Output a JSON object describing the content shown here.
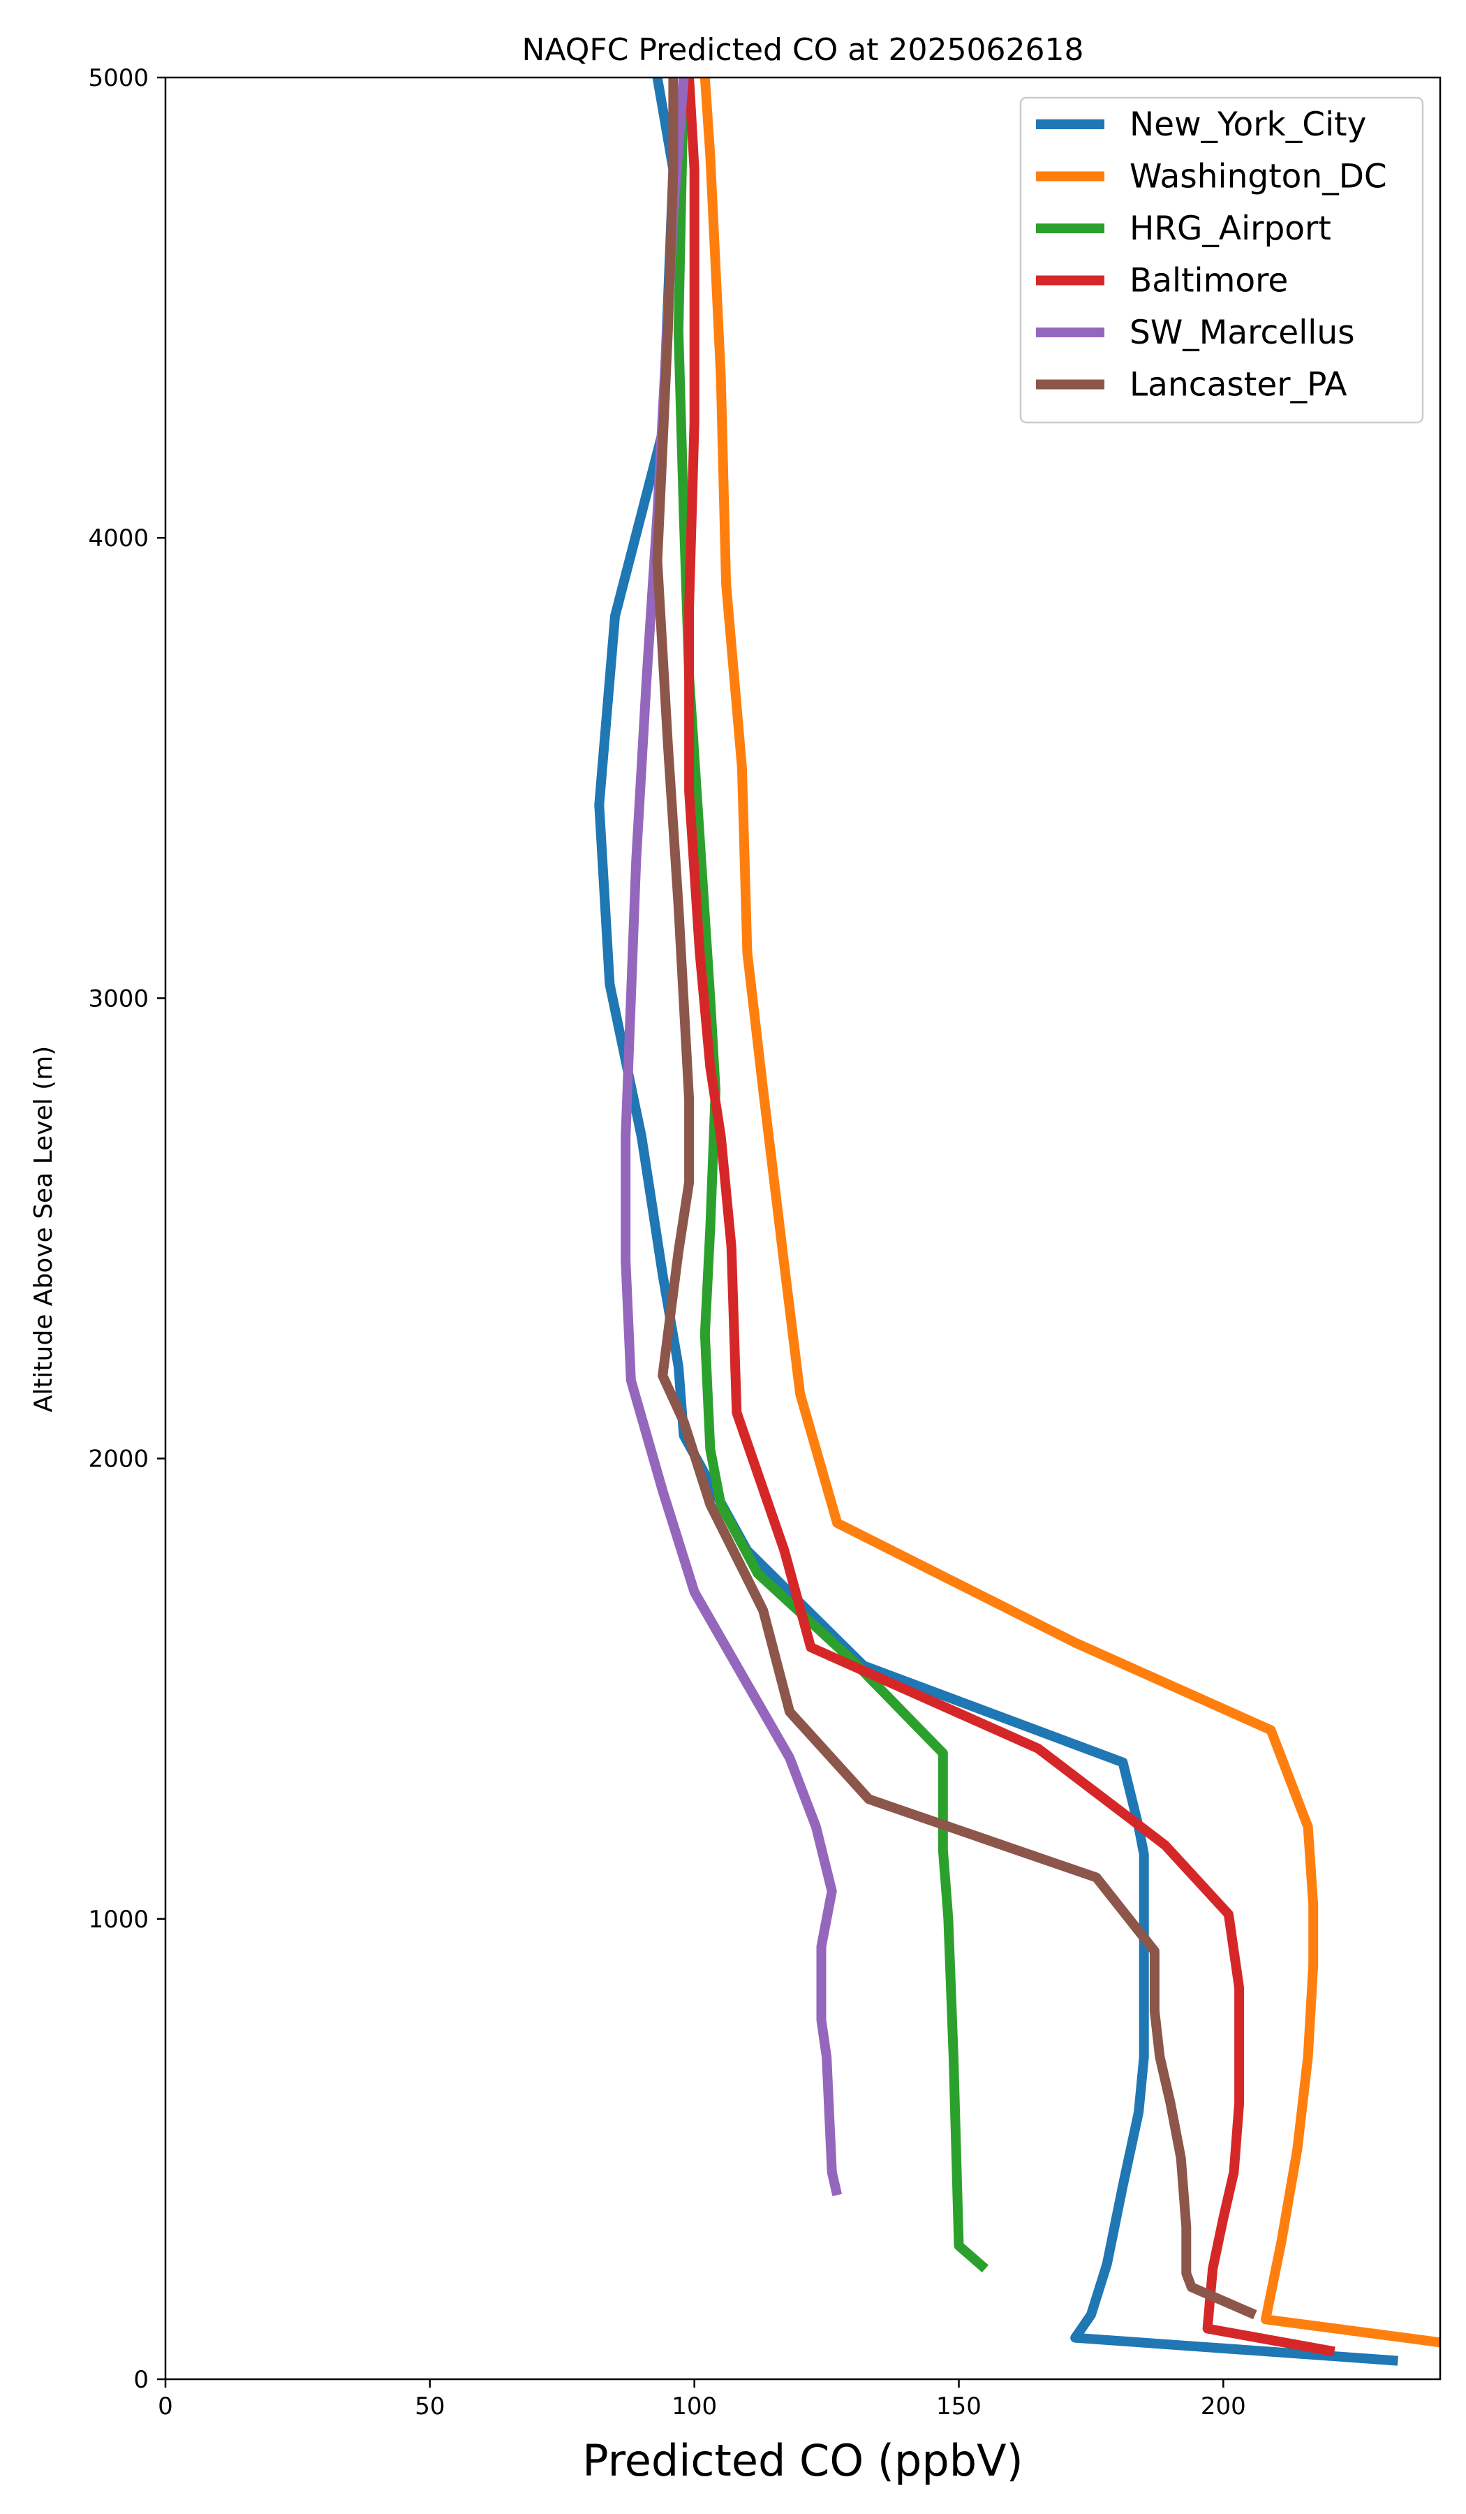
{
  "chart_data": {
    "type": "line",
    "title": "NAQFC Predicted CO at 2025062618",
    "xlabel": "Predicted CO (ppbV)",
    "ylabel": "Altitude Above Sea Level (m)",
    "xlim": [
      0,
      241
    ],
    "ylim": [
      0,
      5000
    ],
    "xticks": [
      0,
      50,
      100,
      150,
      200
    ],
    "yticks": [
      0,
      1000,
      2000,
      3000,
      4000,
      5000
    ],
    "grid": false,
    "legend_position": "top-right",
    "series": [
      {
        "name": "New_York_City",
        "color": "#1f77b4",
        "points": [
          [
            233,
            40
          ],
          [
            172,
            90
          ],
          [
            175,
            140
          ],
          [
            178,
            250
          ],
          [
            181,
            420
          ],
          [
            184,
            580
          ],
          [
            185,
            700
          ],
          [
            185,
            860
          ],
          [
            185,
            1000
          ],
          [
            185,
            1140
          ],
          [
            184,
            1200
          ],
          [
            181,
            1340
          ],
          [
            132,
            1550
          ],
          [
            110,
            1800
          ],
          [
            98,
            2050
          ],
          [
            97,
            2200
          ],
          [
            94,
            2400
          ],
          [
            92,
            2550
          ],
          [
            90,
            2700
          ],
          [
            84,
            3030
          ],
          [
            82,
            3420
          ],
          [
            85,
            3830
          ],
          [
            94,
            4230
          ],
          [
            96,
            4800
          ],
          [
            93,
            5000
          ]
        ]
      },
      {
        "name": "Washington_DC",
        "color": "#ff7f0e",
        "points": [
          [
            241,
            80
          ],
          [
            208,
            130
          ],
          [
            211,
            300
          ],
          [
            214,
            500
          ],
          [
            216,
            700
          ],
          [
            217,
            900
          ],
          [
            217,
            1030
          ],
          [
            216,
            1200
          ],
          [
            209,
            1410
          ],
          [
            172,
            1600
          ],
          [
            127,
            1860
          ],
          [
            120,
            2140
          ],
          [
            117,
            2420
          ],
          [
            113,
            2800
          ],
          [
            110,
            3100
          ],
          [
            109,
            3500
          ],
          [
            106,
            3900
          ],
          [
            105,
            4350
          ],
          [
            103,
            4830
          ],
          [
            102,
            5000
          ]
        ]
      },
      {
        "name": "HRG_Airport",
        "color": "#2ca02c",
        "points": [
          [
            155,
            240
          ],
          [
            150,
            290
          ],
          [
            149,
            700
          ],
          [
            148,
            1000
          ],
          [
            147,
            1150
          ],
          [
            147,
            1360
          ],
          [
            130,
            1560
          ],
          [
            112,
            1750
          ],
          [
            105,
            1900
          ],
          [
            103,
            2020
          ],
          [
            102,
            2270
          ],
          [
            103,
            2500
          ],
          [
            104,
            2800
          ],
          [
            103,
            3000
          ],
          [
            101,
            3350
          ],
          [
            99,
            3700
          ],
          [
            98,
            4050
          ],
          [
            97,
            4450
          ],
          [
            98,
            5000
          ]
        ]
      },
      {
        "name": "Baltimore",
        "color": "#d62728",
        "points": [
          [
            221,
            60
          ],
          [
            197,
            110
          ],
          [
            198,
            240
          ],
          [
            200,
            350
          ],
          [
            202,
            450
          ],
          [
            203,
            600
          ],
          [
            203,
            700
          ],
          [
            203,
            850
          ],
          [
            201,
            1010
          ],
          [
            189,
            1160
          ],
          [
            165,
            1370
          ],
          [
            122,
            1590
          ],
          [
            117,
            1800
          ],
          [
            108,
            2100
          ],
          [
            107,
            2460
          ],
          [
            105,
            2700
          ],
          [
            103,
            2850
          ],
          [
            101,
            3100
          ],
          [
            99,
            3450
          ],
          [
            99,
            3850
          ],
          [
            100,
            4250
          ],
          [
            100,
            4800
          ],
          [
            99,
            5000
          ]
        ]
      },
      {
        "name": "SW_Marcellus",
        "color": "#9467bd",
        "points": [
          [
            127,
            400
          ],
          [
            126,
            450
          ],
          [
            125,
            700
          ],
          [
            124,
            780
          ],
          [
            124,
            940
          ],
          [
            126,
            1060
          ],
          [
            123,
            1200
          ],
          [
            118,
            1350
          ],
          [
            100,
            1710
          ],
          [
            94,
            1930
          ],
          [
            88,
            2170
          ],
          [
            87,
            2430
          ],
          [
            87,
            2700
          ],
          [
            88,
            3000
          ],
          [
            89,
            3300
          ],
          [
            91,
            3700
          ],
          [
            93,
            4050
          ],
          [
            96,
            4700
          ],
          [
            98,
            5000
          ]
        ]
      },
      {
        "name": "Lancaster_PA",
        "color": "#8c564b",
        "points": [
          [
            206,
            140
          ],
          [
            194,
            200
          ],
          [
            193,
            230
          ],
          [
            193,
            330
          ],
          [
            192,
            480
          ],
          [
            190,
            600
          ],
          [
            188,
            700
          ],
          [
            187,
            800
          ],
          [
            187,
            930
          ],
          [
            176,
            1090
          ],
          [
            133,
            1260
          ],
          [
            118,
            1450
          ],
          [
            113,
            1670
          ],
          [
            103,
            1900
          ],
          [
            98,
            2080
          ],
          [
            94,
            2180
          ],
          [
            97,
            2450
          ],
          [
            99,
            2600
          ],
          [
            99,
            2780
          ],
          [
            97,
            3200
          ],
          [
            95,
            3550
          ],
          [
            93,
            3950
          ],
          [
            94,
            4200
          ],
          [
            95,
            4450
          ],
          [
            96,
            4800
          ],
          [
            96,
            5000
          ]
        ]
      }
    ]
  }
}
